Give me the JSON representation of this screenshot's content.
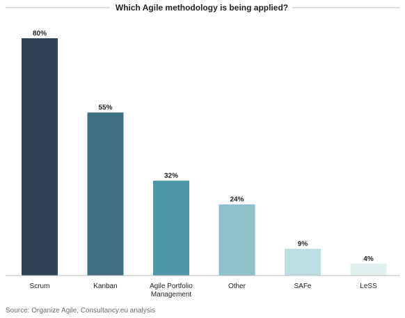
{
  "chart_data": {
    "type": "bar",
    "title": "Which Agile methodology is being applied?",
    "categories": [
      "Scrum",
      "Kanban",
      "Agile Portfolio Management",
      "Other",
      "SAFe",
      "LeSS"
    ],
    "category_lines": [
      [
        "Scrum"
      ],
      [
        "Kanban"
      ],
      [
        "Agile Portfolio",
        "Management"
      ],
      [
        "Other"
      ],
      [
        "SAFe"
      ],
      [
        "LeSS"
      ]
    ],
    "values": [
      80,
      55,
      32,
      24,
      9,
      4
    ],
    "value_labels": [
      "80%",
      "55%",
      "32%",
      "24%",
      "9%",
      "4%"
    ],
    "unit": "%",
    "ylim": [
      0,
      80
    ],
    "grid": false,
    "legend": "none",
    "colors": [
      "#2f4357",
      "#436f84",
      "#4e97a6",
      "#8ec2cb",
      "#bcdde2",
      "#e1efef"
    ],
    "title_rule_color": "#bbbbbb",
    "baseline_color": "#bbbbbb"
  },
  "source": "Source: Organize Agile, Consultancy.eu analysis"
}
